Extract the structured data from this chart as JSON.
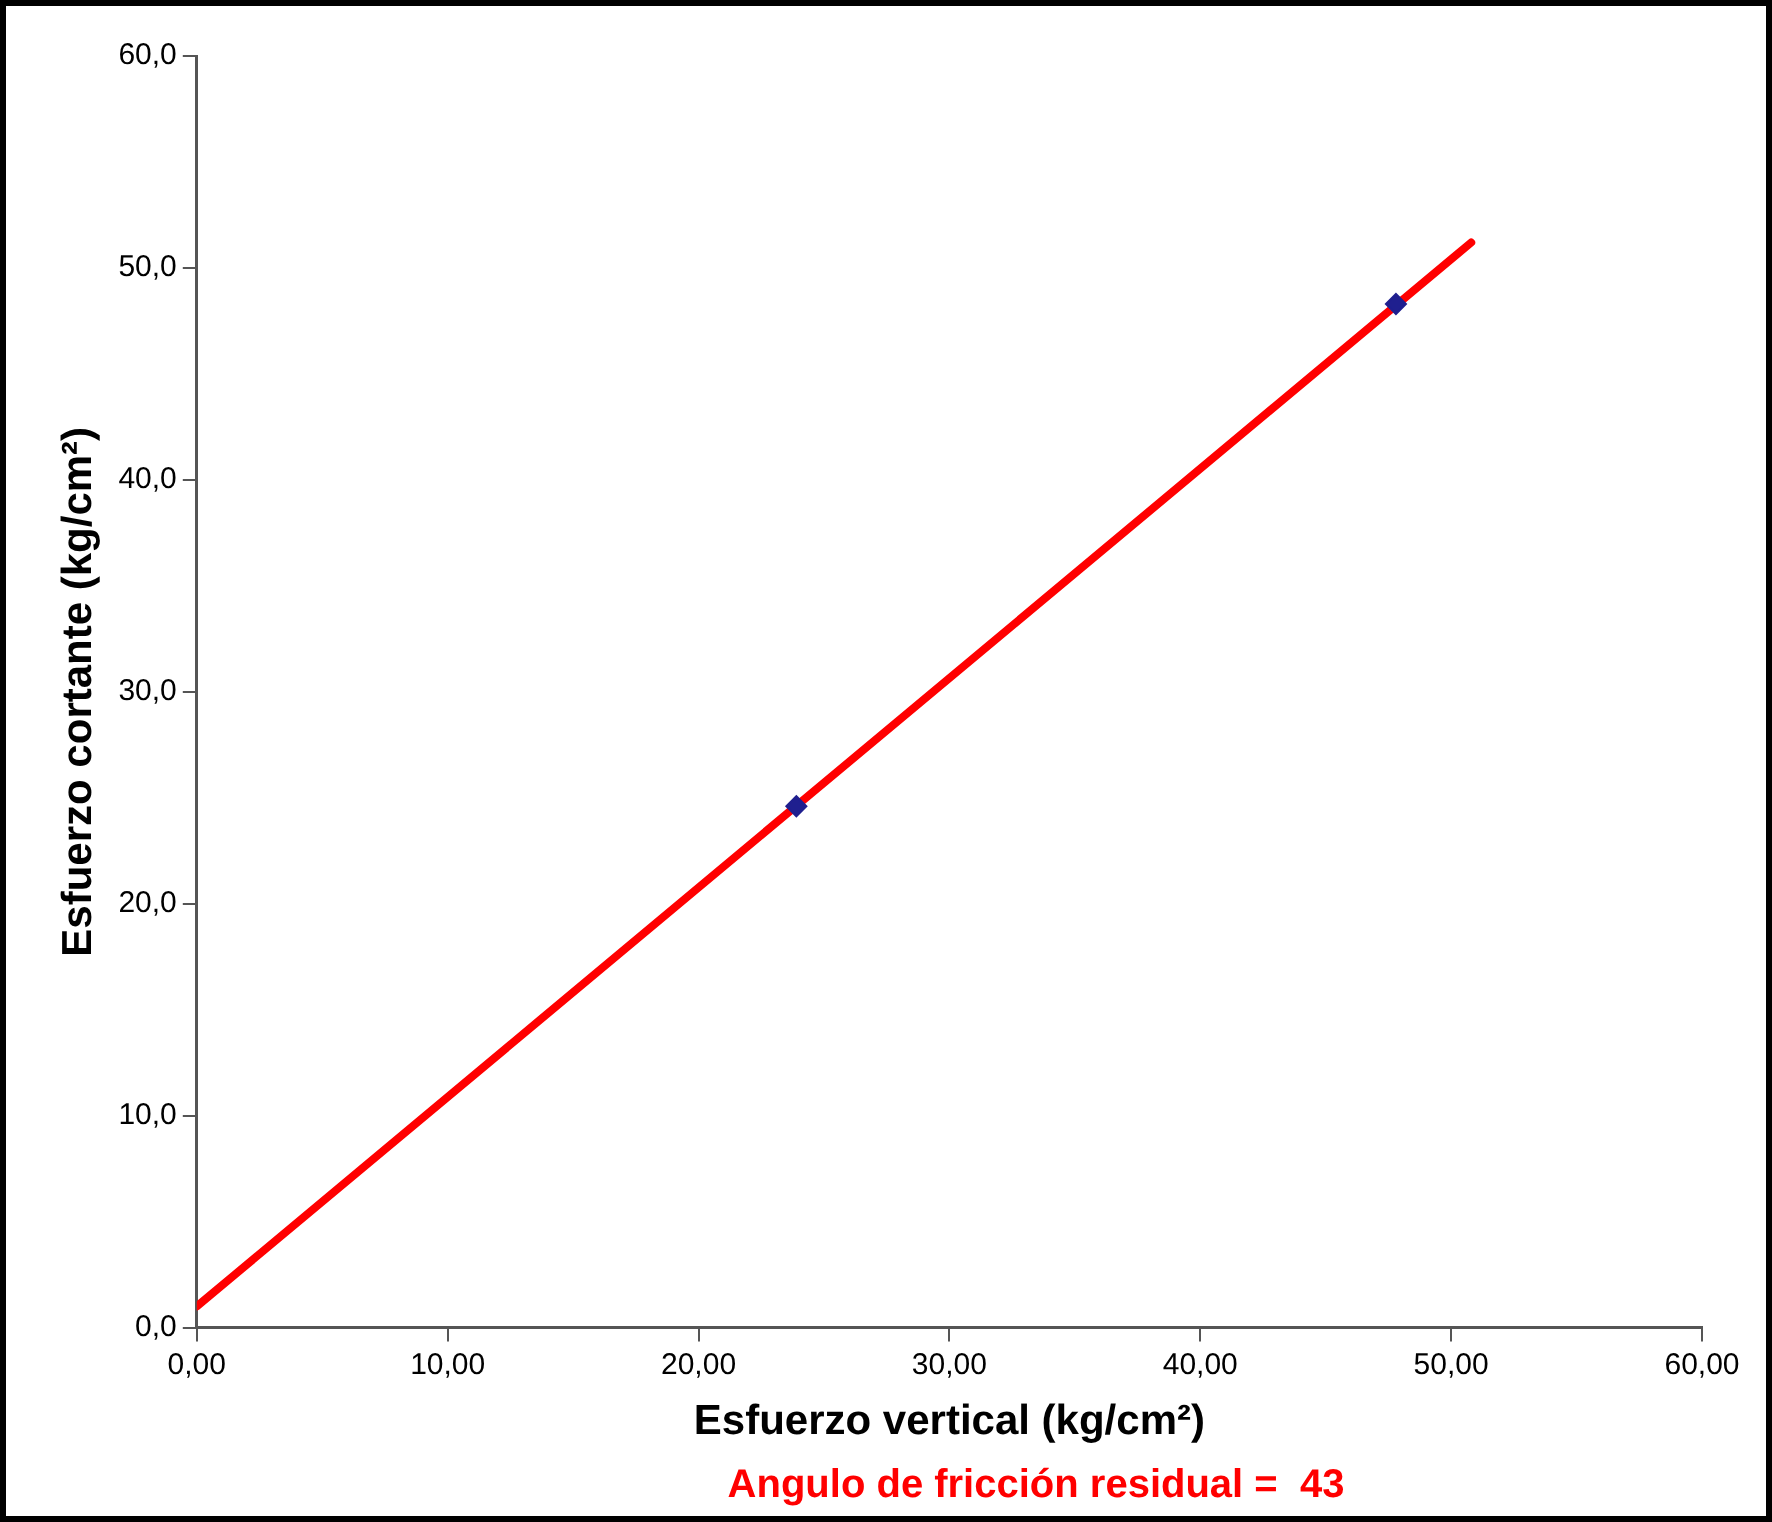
{
  "chart_data": {
    "type": "scatter",
    "xlabel": "Esfuerzo vertical (kg/cm²)",
    "ylabel": "Esfuerzo cortante (kg/cm²)",
    "annotations": [
      "Angulo de fricción residual =  43"
    ],
    "xlim": [
      0,
      60
    ],
    "ylim": [
      0,
      60
    ],
    "xticks": [
      {
        "value": 0,
        "label": "0,00"
      },
      {
        "value": 10,
        "label": "10,00"
      },
      {
        "value": 20,
        "label": "20,00"
      },
      {
        "value": 30,
        "label": "30,00"
      },
      {
        "value": 40,
        "label": "40,00"
      },
      {
        "value": 50,
        "label": "50,00"
      },
      {
        "value": 60,
        "label": "60,00"
      }
    ],
    "yticks": [
      {
        "value": 0,
        "label": "0,0"
      },
      {
        "value": 10,
        "label": "10,0"
      },
      {
        "value": 20,
        "label": "20,0"
      },
      {
        "value": 30,
        "label": "30,0"
      },
      {
        "value": 40,
        "label": "40,0"
      },
      {
        "value": 50,
        "label": "50,0"
      },
      {
        "value": 60,
        "label": "60,0"
      }
    ],
    "grid": false,
    "legend": false,
    "marker": "diamond",
    "series": [
      {
        "color": "#1f1f8f",
        "x": [
          23.9,
          47.8
        ],
        "values": [
          24.6,
          48.3
        ]
      },
      {
        "type": "line",
        "color": "#ff0000",
        "marker": "none",
        "x": [
          0,
          50.8
        ],
        "values": [
          1.0,
          51.2
        ]
      }
    ]
  }
}
